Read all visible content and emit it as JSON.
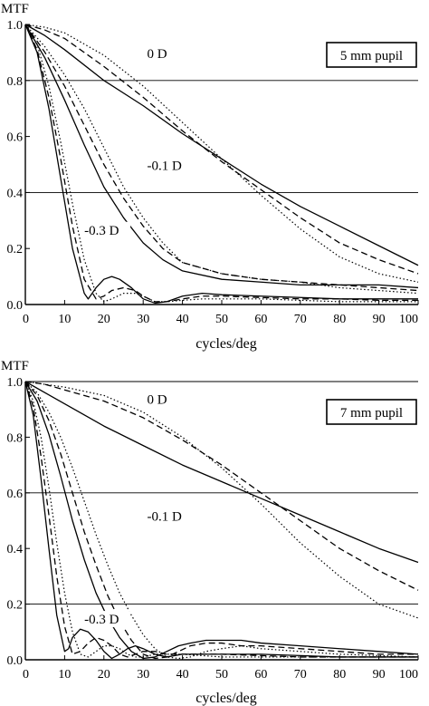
{
  "chart_data": [
    {
      "type": "line",
      "panel_label": "5 mm pupil",
      "ylabel": "MTF",
      "xlabel": "cycles/deg",
      "xlim": [
        0,
        100
      ],
      "ylim": [
        0,
        1.0
      ],
      "xticks": [
        0,
        10,
        20,
        30,
        40,
        50,
        60,
        70,
        80,
        90,
        100
      ],
      "yticks": [
        "0.0",
        "0.2",
        "0.4",
        "0.6",
        "0.8",
        "1.0"
      ],
      "ygrid": [
        0.4,
        0.8
      ],
      "annotations": [
        {
          "text": "0 D",
          "x": 31,
          "y": 0.88
        },
        {
          "text": "-0.1 D",
          "x": 31,
          "y": 0.48
        },
        {
          "text": "-0.3 D",
          "x": 15,
          "y": 0.25
        }
      ],
      "series": [
        {
          "style": "solid",
          "x": [
            0,
            5,
            10,
            20,
            30,
            40,
            50,
            60,
            70,
            80,
            90,
            100
          ],
          "y": [
            1.0,
            0.96,
            0.91,
            0.8,
            0.71,
            0.61,
            0.52,
            0.43,
            0.35,
            0.28,
            0.21,
            0.14
          ]
        },
        {
          "style": "dashed",
          "x": [
            0,
            5,
            10,
            20,
            30,
            40,
            50,
            60,
            70,
            80,
            90,
            100
          ],
          "y": [
            1.0,
            0.98,
            0.95,
            0.85,
            0.74,
            0.62,
            0.51,
            0.41,
            0.31,
            0.22,
            0.16,
            0.11
          ]
        },
        {
          "style": "dotted",
          "x": [
            0,
            5,
            10,
            20,
            30,
            40,
            50,
            60,
            70,
            80,
            90,
            100
          ],
          "y": [
            1.0,
            0.99,
            0.97,
            0.89,
            0.78,
            0.65,
            0.52,
            0.39,
            0.27,
            0.17,
            0.11,
            0.08
          ]
        },
        {
          "style": "solid",
          "x": [
            0,
            5,
            10,
            15,
            20,
            25,
            30,
            35,
            40,
            50,
            60,
            70,
            80,
            90,
            100
          ],
          "y": [
            1.0,
            0.88,
            0.73,
            0.57,
            0.42,
            0.31,
            0.22,
            0.16,
            0.12,
            0.09,
            0.08,
            0.07,
            0.07,
            0.07,
            0.06
          ]
        },
        {
          "style": "dashed",
          "x": [
            0,
            5,
            10,
            15,
            20,
            25,
            30,
            35,
            40,
            50,
            60,
            70,
            80,
            90,
            100
          ],
          "y": [
            1.0,
            0.9,
            0.78,
            0.64,
            0.5,
            0.38,
            0.28,
            0.2,
            0.15,
            0.11,
            0.09,
            0.08,
            0.07,
            0.06,
            0.05
          ]
        },
        {
          "style": "dotted",
          "x": [
            0,
            5,
            10,
            15,
            20,
            25,
            30,
            35,
            40,
            50,
            60,
            70,
            80,
            90,
            100
          ],
          "y": [
            1.0,
            0.92,
            0.82,
            0.7,
            0.56,
            0.42,
            0.31,
            0.22,
            0.15,
            0.11,
            0.09,
            0.08,
            0.06,
            0.05,
            0.04
          ]
        },
        {
          "style": "solid",
          "x": [
            0,
            3,
            6,
            9,
            12,
            15,
            16,
            18,
            20,
            22,
            24,
            27,
            30,
            33,
            36,
            40,
            45,
            50,
            60,
            70,
            80,
            90,
            100
          ],
          "y": [
            1.0,
            0.9,
            0.7,
            0.45,
            0.2,
            0.04,
            0.02,
            0.06,
            0.09,
            0.1,
            0.09,
            0.06,
            0.02,
            0.005,
            0.01,
            0.03,
            0.04,
            0.035,
            0.03,
            0.025,
            0.02,
            0.02,
            0.02
          ]
        },
        {
          "style": "dashed",
          "x": [
            0,
            3,
            6,
            9,
            12,
            15,
            18,
            20,
            22,
            25,
            28,
            30,
            33,
            36,
            40,
            45,
            50,
            60,
            70,
            80,
            90,
            100
          ],
          "y": [
            1.0,
            0.91,
            0.74,
            0.52,
            0.28,
            0.09,
            0.02,
            0.03,
            0.05,
            0.06,
            0.05,
            0.03,
            0.01,
            0.01,
            0.02,
            0.03,
            0.03,
            0.025,
            0.02,
            0.02,
            0.015,
            0.015
          ]
        },
        {
          "style": "dotted",
          "x": [
            0,
            3,
            6,
            9,
            12,
            15,
            18,
            20,
            22,
            25,
            28,
            30,
            33,
            36,
            40,
            45,
            50,
            60,
            70,
            80,
            90,
            100
          ],
          "y": [
            1.0,
            0.93,
            0.78,
            0.58,
            0.36,
            0.16,
            0.04,
            0.01,
            0.02,
            0.04,
            0.04,
            0.03,
            0.01,
            0.01,
            0.015,
            0.02,
            0.02,
            0.02,
            0.015,
            0.01,
            0.01,
            0.01
          ]
        }
      ]
    },
    {
      "type": "line",
      "panel_label": "7 mm pupil",
      "ylabel": "MTF",
      "xlabel": "cycles/deg",
      "xlim": [
        0,
        100
      ],
      "ylim": [
        0,
        1.0
      ],
      "xticks": [
        0,
        10,
        20,
        30,
        40,
        50,
        60,
        70,
        80,
        90,
        100
      ],
      "yticks": [
        "0.0",
        "0.2",
        "0.4",
        "0.6",
        "0.8",
        "1.0"
      ],
      "ygrid": [
        0.2,
        0.6,
        1.0
      ],
      "annotations": [
        {
          "text": "0 D",
          "x": 31,
          "y": 0.92
        },
        {
          "text": "-0.1 D",
          "x": 31,
          "y": 0.5
        },
        {
          "text": "-0.3 D",
          "x": 15,
          "y": 0.13
        }
      ],
      "series": [
        {
          "style": "solid",
          "x": [
            0,
            5,
            10,
            20,
            30,
            40,
            50,
            60,
            70,
            80,
            90,
            100
          ],
          "y": [
            1.0,
            0.96,
            0.92,
            0.84,
            0.77,
            0.7,
            0.64,
            0.58,
            0.52,
            0.46,
            0.4,
            0.35
          ]
        },
        {
          "style": "dashed",
          "x": [
            0,
            5,
            10,
            20,
            30,
            40,
            50,
            60,
            70,
            80,
            90,
            100
          ],
          "y": [
            1.0,
            0.99,
            0.97,
            0.93,
            0.87,
            0.79,
            0.7,
            0.6,
            0.5,
            0.4,
            0.32,
            0.25
          ]
        },
        {
          "style": "dotted",
          "x": [
            0,
            5,
            10,
            20,
            30,
            40,
            50,
            60,
            70,
            80,
            90,
            100
          ],
          "y": [
            1.0,
            0.99,
            0.98,
            0.95,
            0.89,
            0.8,
            0.69,
            0.56,
            0.42,
            0.3,
            0.2,
            0.15
          ]
        },
        {
          "style": "solid",
          "x": [
            0,
            3,
            6,
            9,
            12,
            15,
            18,
            21,
            24,
            27,
            30,
            33,
            36,
            39,
            42,
            46,
            50,
            55,
            60,
            70,
            80,
            90,
            100
          ],
          "y": [
            1.0,
            0.93,
            0.81,
            0.66,
            0.5,
            0.36,
            0.24,
            0.15,
            0.08,
            0.03,
            0.005,
            0.01,
            0.03,
            0.05,
            0.06,
            0.07,
            0.07,
            0.07,
            0.06,
            0.05,
            0.04,
            0.03,
            0.02
          ]
        },
        {
          "style": "dashed",
          "x": [
            0,
            3,
            6,
            9,
            12,
            15,
            18,
            21,
            24,
            27,
            30,
            33,
            36,
            39,
            42,
            46,
            50,
            55,
            60,
            70,
            80,
            90,
            100
          ],
          "y": [
            1.0,
            0.95,
            0.86,
            0.74,
            0.6,
            0.46,
            0.34,
            0.23,
            0.14,
            0.07,
            0.02,
            0.005,
            0.01,
            0.03,
            0.05,
            0.06,
            0.06,
            0.05,
            0.05,
            0.04,
            0.03,
            0.02,
            0.02
          ]
        },
        {
          "style": "dotted",
          "x": [
            0,
            3,
            6,
            9,
            12,
            15,
            18,
            21,
            24,
            27,
            30,
            33,
            36,
            39,
            42,
            46,
            50,
            55,
            60,
            70,
            80,
            90,
            100
          ],
          "y": [
            1.0,
            0.96,
            0.89,
            0.8,
            0.69,
            0.57,
            0.45,
            0.34,
            0.24,
            0.16,
            0.09,
            0.04,
            0.01,
            0.005,
            0.01,
            0.03,
            0.04,
            0.05,
            0.04,
            0.03,
            0.02,
            0.015,
            0.01
          ]
        },
        {
          "style": "solid",
          "x": [
            0,
            2,
            4,
            6,
            8,
            10,
            11,
            12,
            14,
            16,
            18,
            20,
            22,
            24,
            26,
            28,
            30,
            33,
            36,
            40,
            45,
            50,
            60,
            70,
            80,
            90,
            100
          ],
          "y": [
            1.0,
            0.88,
            0.65,
            0.4,
            0.16,
            0.03,
            0.04,
            0.08,
            0.11,
            0.1,
            0.07,
            0.03,
            0.005,
            0.02,
            0.04,
            0.05,
            0.04,
            0.02,
            0.01,
            0.02,
            0.02,
            0.02,
            0.02,
            0.015,
            0.01,
            0.01,
            0.01
          ]
        },
        {
          "style": "dashed",
          "x": [
            0,
            2,
            4,
            6,
            8,
            10,
            12,
            14,
            16,
            18,
            20,
            22,
            24,
            26,
            28,
            30,
            33,
            36,
            40,
            45,
            50,
            60,
            70,
            80,
            90,
            100
          ],
          "y": [
            1.0,
            0.91,
            0.73,
            0.52,
            0.3,
            0.12,
            0.02,
            0.03,
            0.06,
            0.08,
            0.07,
            0.05,
            0.02,
            0.01,
            0.02,
            0.03,
            0.03,
            0.02,
            0.02,
            0.02,
            0.02,
            0.015,
            0.01,
            0.01,
            0.01,
            0.01
          ]
        },
        {
          "style": "dotted",
          "x": [
            0,
            2,
            4,
            6,
            8,
            10,
            12,
            14,
            16,
            18,
            20,
            22,
            24,
            26,
            28,
            30,
            33,
            36,
            40,
            45,
            50,
            60,
            70,
            80,
            90,
            100
          ],
          "y": [
            1.0,
            0.93,
            0.8,
            0.62,
            0.42,
            0.24,
            0.1,
            0.02,
            0.01,
            0.03,
            0.05,
            0.05,
            0.04,
            0.02,
            0.01,
            0.01,
            0.02,
            0.02,
            0.02,
            0.015,
            0.01,
            0.01,
            0.01,
            0.01,
            0.01,
            0.01
          ]
        }
      ]
    }
  ]
}
